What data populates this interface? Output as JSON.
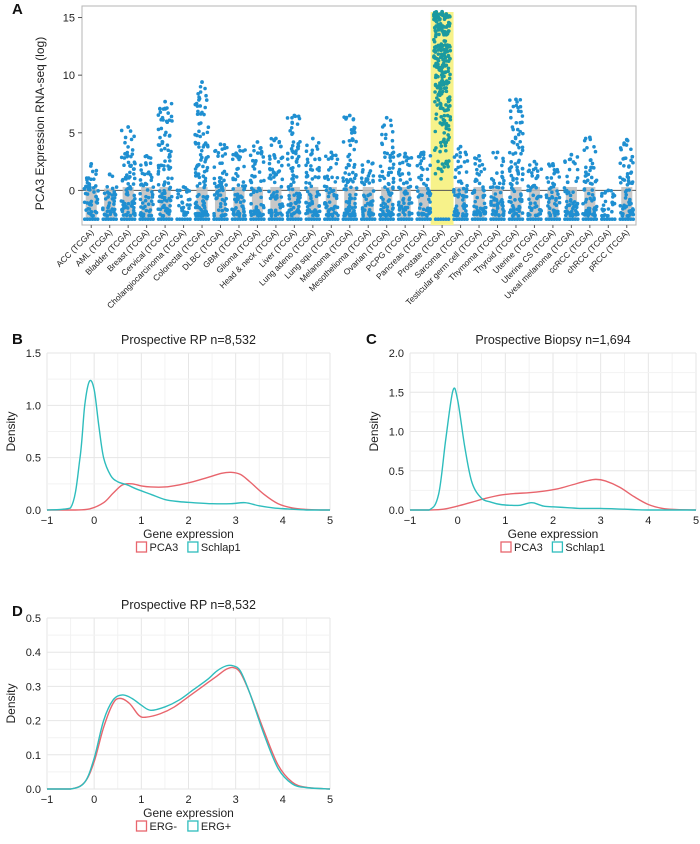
{
  "chart_data": [
    {
      "panel": "A",
      "type": "scatter",
      "title": "",
      "xlabel": "",
      "ylabel": "PCA3 Expression RNA-seq (log)",
      "ylim": [
        -3,
        16
      ],
      "yticks": [
        0,
        5,
        10,
        15
      ],
      "grid": false,
      "reference_line": 0,
      "highlight_category": "Prostate (TCGA)",
      "point_color": "#1f8fd1",
      "box_color": "#bdbdbd",
      "highlight_color": "#f7f28a",
      "categories": [
        "ACC (TCGA)",
        "AML (TCGA)",
        "Bladder (TCGA)",
        "Breast (TCGA)",
        "Cervical (TCGA)",
        "Cholangiocarcinoma (TCGA)",
        "Colorectal (TCGA)",
        "DLBC (TCGA)",
        "GBM (TCGA)",
        "Glioma (TCGA)",
        "Head & neck (TCGA)",
        "Liver (TCGA)",
        "Lung adeno (TCGA)",
        "Lung squ (TCGA)",
        "Melanoma (TCGA)",
        "Mesothelioma (TCGA)",
        "Ovarian (TCGA)",
        "PCPG (TCGA)",
        "Pancreas (TCGA)",
        "Prostate (TCGA)",
        "Sarcoma (TCGA)",
        "Testicular germ cell (TCGA)",
        "Thymoma (TCGA)",
        "Thyroid (TCGA)",
        "Uterine (TCGA)",
        "Uterine CS (TCGA)",
        "Uveal melanoma (TCGA)",
        "ccRCC (TCGA)",
        "chRCC (TCGA)",
        "pRCC (TCGA)"
      ],
      "max_values": [
        2.3,
        1.4,
        5.5,
        3.0,
        7.7,
        0.3,
        9.4,
        4.0,
        3.8,
        4.2,
        4.5,
        6.5,
        4.5,
        3.3,
        6.5,
        2.5,
        6.3,
        3.2,
        3.3,
        15.5,
        3.8,
        3.0,
        3.3,
        7.9,
        2.5,
        2.3,
        3.1,
        4.6,
        0.0,
        4.4
      ],
      "floor_value": -2.5
    },
    {
      "panel": "B",
      "type": "line",
      "title": "Prospective RP n=8,532",
      "xlabel": "Gene expression",
      "ylabel": "Density",
      "xlim": [
        -1,
        5
      ],
      "ylim": [
        0,
        1.5
      ],
      "xticks": [
        -1,
        0,
        1,
        2,
        3,
        4,
        5
      ],
      "yticks": [
        0.0,
        0.5,
        1.0,
        1.5
      ],
      "grid": true,
      "legend_position": "bottom",
      "series": [
        {
          "name": "PCA3",
          "color": "#e8656d",
          "x": [
            -1,
            -0.4,
            -0.1,
            0.2,
            0.4,
            0.6,
            0.8,
            1.0,
            1.2,
            1.5,
            1.8,
            2.1,
            2.4,
            2.7,
            2.9,
            3.1,
            3.3,
            3.6,
            3.9,
            4.2,
            4.5,
            4.8,
            5.0
          ],
          "y": [
            0,
            0.0,
            0.01,
            0.07,
            0.16,
            0.24,
            0.25,
            0.23,
            0.22,
            0.22,
            0.24,
            0.27,
            0.31,
            0.35,
            0.36,
            0.34,
            0.27,
            0.15,
            0.06,
            0.02,
            0.005,
            0,
            0
          ]
        },
        {
          "name": "Schlap1",
          "color": "#2ebdbd",
          "x": [
            -1,
            -0.5,
            -0.3,
            -0.2,
            -0.1,
            0.0,
            0.1,
            0.2,
            0.35,
            0.5,
            0.7,
            0.9,
            1.2,
            1.5,
            1.8,
            2.1,
            2.5,
            2.9,
            3.2,
            3.5,
            3.8,
            4.1,
            4.5,
            5.0
          ],
          "y": [
            0,
            0.02,
            0.5,
            1.0,
            1.23,
            1.15,
            0.8,
            0.5,
            0.33,
            0.27,
            0.24,
            0.2,
            0.15,
            0.1,
            0.08,
            0.07,
            0.06,
            0.06,
            0.07,
            0.04,
            0.02,
            0.01,
            0,
            0
          ]
        }
      ]
    },
    {
      "panel": "C",
      "type": "line",
      "title": "Prospective Biopsy n=1,694",
      "xlabel": "Gene expression",
      "ylabel": "Density",
      "xlim": [
        -1,
        5
      ],
      "ylim": [
        0,
        2.0
      ],
      "xticks": [
        -1,
        0,
        1,
        2,
        3,
        4,
        5
      ],
      "yticks": [
        0.0,
        0.5,
        1.0,
        1.5,
        2.0
      ],
      "grid": true,
      "legend_position": "bottom",
      "series": [
        {
          "name": "PCA3",
          "color": "#e8656d",
          "x": [
            -1,
            -0.6,
            -0.3,
            0.0,
            0.3,
            0.6,
            0.9,
            1.2,
            1.5,
            1.8,
            2.1,
            2.4,
            2.7,
            2.9,
            3.1,
            3.4,
            3.7,
            4.0,
            4.3,
            4.6,
            5.0
          ],
          "y": [
            0,
            0.0,
            0.01,
            0.05,
            0.1,
            0.15,
            0.19,
            0.21,
            0.22,
            0.24,
            0.27,
            0.32,
            0.37,
            0.39,
            0.37,
            0.29,
            0.17,
            0.07,
            0.02,
            0.005,
            0
          ]
        },
        {
          "name": "Schlap1",
          "color": "#2ebdbd",
          "x": [
            -1,
            -0.6,
            -0.4,
            -0.25,
            -0.1,
            0.0,
            0.15,
            0.3,
            0.5,
            0.7,
            0.9,
            1.1,
            1.3,
            1.5,
            1.6,
            1.8,
            2.0,
            2.3,
            2.6,
            3.0,
            3.5,
            4.0,
            5.0
          ],
          "y": [
            0,
            0.0,
            0.2,
            0.9,
            1.52,
            1.4,
            0.8,
            0.35,
            0.15,
            0.1,
            0.07,
            0.06,
            0.06,
            0.09,
            0.09,
            0.05,
            0.04,
            0.03,
            0.02,
            0.02,
            0.01,
            0,
            0
          ]
        }
      ]
    },
    {
      "panel": "D",
      "type": "line",
      "title": "Prospective RP n=8,532",
      "xlabel": "Gene expression",
      "ylabel": "Density",
      "xlim": [
        -1,
        5
      ],
      "ylim": [
        0,
        0.5
      ],
      "xticks": [
        -1,
        0,
        1,
        2,
        3,
        4,
        5
      ],
      "yticks": [
        0.0,
        0.1,
        0.2,
        0.3,
        0.4,
        0.5
      ],
      "grid": true,
      "legend_position": "bottom",
      "series": [
        {
          "name": "ERG-",
          "color": "#e8656d",
          "x": [
            -1,
            -0.5,
            -0.2,
            0.0,
            0.2,
            0.4,
            0.55,
            0.75,
            0.95,
            1.1,
            1.4,
            1.7,
            2.0,
            2.3,
            2.6,
            2.8,
            2.95,
            3.1,
            3.3,
            3.6,
            3.9,
            4.2,
            4.5,
            5.0
          ],
          "y": [
            0,
            0.0,
            0.02,
            0.08,
            0.18,
            0.25,
            0.265,
            0.25,
            0.215,
            0.21,
            0.22,
            0.24,
            0.27,
            0.3,
            0.33,
            0.35,
            0.355,
            0.34,
            0.28,
            0.17,
            0.07,
            0.02,
            0.005,
            0
          ]
        },
        {
          "name": "ERG+",
          "color": "#2ebdbd",
          "x": [
            -1,
            -0.5,
            -0.2,
            0.0,
            0.2,
            0.4,
            0.6,
            0.8,
            1.0,
            1.2,
            1.5,
            1.8,
            2.1,
            2.4,
            2.6,
            2.8,
            2.95,
            3.1,
            3.3,
            3.6,
            3.9,
            4.2,
            4.5,
            5.0
          ],
          "y": [
            0,
            0.0,
            0.02,
            0.09,
            0.2,
            0.26,
            0.275,
            0.265,
            0.245,
            0.23,
            0.24,
            0.26,
            0.29,
            0.32,
            0.345,
            0.36,
            0.36,
            0.345,
            0.28,
            0.16,
            0.06,
            0.015,
            0.004,
            0
          ]
        }
      ]
    }
  ],
  "panel_labels": [
    "A",
    "B",
    "C",
    "D"
  ]
}
